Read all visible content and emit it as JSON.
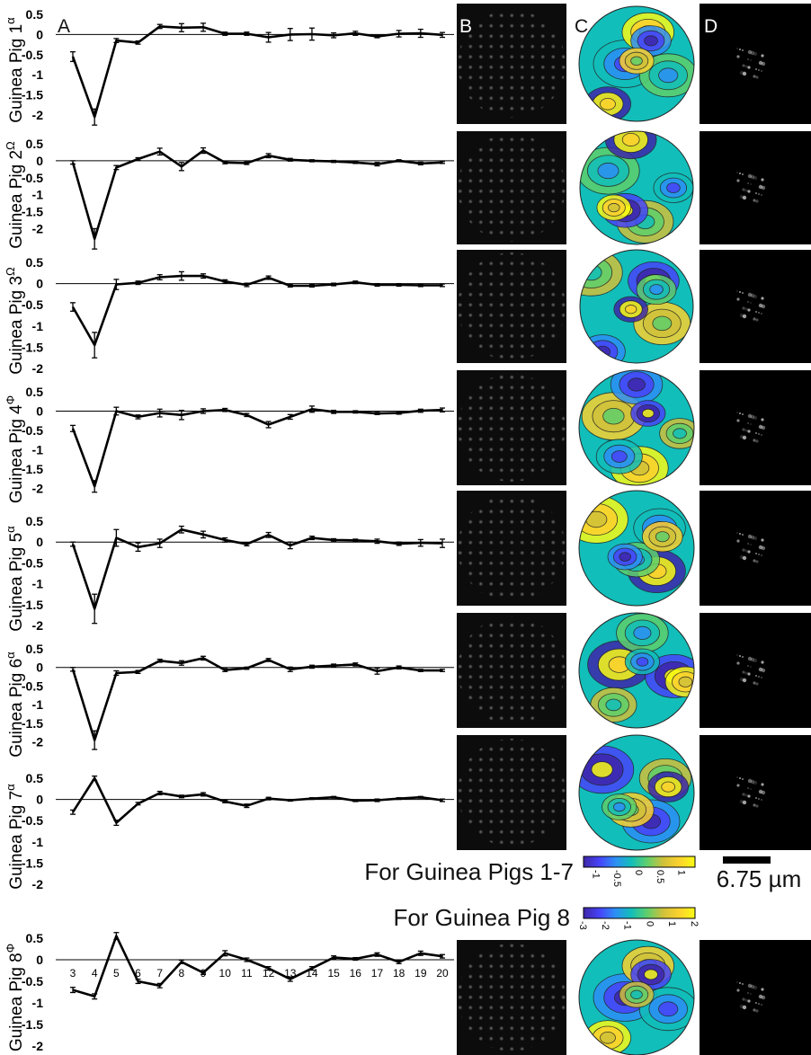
{
  "panel_letters": [
    "A",
    "B",
    "C",
    "D"
  ],
  "captions": {
    "pigs_1_7": "For Guinea Pigs 1-7",
    "pig_8": "For Guinea Pig 8"
  },
  "scale_bar_label": "6.75 µm",
  "colorbars": [
    {
      "ticks": [
        "-1",
        "-0.5",
        "0",
        "0.5",
        "1"
      ],
      "range": [
        -1.3,
        1.3
      ]
    },
    {
      "ticks": [
        "-3",
        "-2",
        "-1",
        "0",
        "1",
        "2"
      ],
      "range": [
        -3,
        2
      ]
    }
  ],
  "colormap": [
    "#3e26a8",
    "#4743f8",
    "#2d8ff5",
    "#12beb9",
    "#5fcf6c",
    "#d0c13a",
    "#fcd22e",
    "#f9fb15"
  ],
  "chart_data": [
    {
      "type": "line",
      "ylabel": "Guinea Pig 1",
      "ylabel_sup": "α",
      "ylim": [
        -2,
        0.5
      ],
      "yticks": [
        "0.5",
        "0",
        "-0.5",
        "-1",
        "-1.5",
        "-2"
      ],
      "x": [
        3,
        4,
        5,
        6,
        7,
        8,
        9,
        10,
        11,
        12,
        13,
        14,
        15,
        16,
        17,
        18,
        19,
        20
      ],
      "values": [
        -0.55,
        -2.05,
        -0.15,
        -0.2,
        0.2,
        0.17,
        0.18,
        0.02,
        0.02,
        -0.07,
        0,
        0.01,
        -0.02,
        0.03,
        -0.05,
        0.02,
        0.03,
        -0.01
      ],
      "errors": [
        0.12,
        0.2,
        0.05,
        0.04,
        0.05,
        0.1,
        0.1,
        0.04,
        0.04,
        0.12,
        0.15,
        0.15,
        0.06,
        0.05,
        0.03,
        0.08,
        0.1,
        0.06
      ]
    },
    {
      "type": "line",
      "ylabel": "Guinea Pig 2",
      "ylabel_sup": "Ω",
      "ylim": [
        -2.2,
        0.5
      ],
      "yticks": [
        "0.5",
        "0",
        "-0.5",
        "-1",
        "-1.5",
        "-2"
      ],
      "x": [
        3,
        4,
        5,
        6,
        7,
        8,
        9,
        10,
        11,
        12,
        13,
        14,
        15,
        16,
        17,
        18,
        19,
        20
      ],
      "values": [
        -0.05,
        -2.3,
        -0.2,
        0.05,
        0.27,
        -0.17,
        0.3,
        -0.05,
        -0.07,
        0.15,
        0.03,
        0,
        -0.02,
        -0.05,
        -0.1,
        0,
        -0.08,
        -0.05
      ],
      "errors": [
        0.05,
        0.3,
        0.06,
        0.04,
        0.1,
        0.12,
        0.08,
        0.04,
        0.04,
        0.06,
        0.04,
        0.03,
        0.03,
        0.03,
        0.05,
        0.03,
        0.04,
        0.03
      ]
    },
    {
      "type": "line",
      "ylabel": "Guinea Pig 3",
      "ylabel_sup": "Ω",
      "ylim": [
        -2,
        0.5
      ],
      "yticks": [
        "0.5",
        "0",
        "-0.5",
        "-1",
        "-1.5",
        "-2"
      ],
      "x": [
        3,
        4,
        5,
        6,
        7,
        8,
        9,
        10,
        11,
        12,
        13,
        14,
        15,
        16,
        17,
        18,
        19,
        20
      ],
      "values": [
        -0.55,
        -1.45,
        -0.02,
        0.02,
        0.15,
        0.18,
        0.18,
        0.05,
        -0.03,
        0.14,
        -0.05,
        -0.05,
        -0.02,
        0.03,
        -0.03,
        -0.03,
        -0.04,
        -0.04
      ],
      "errors": [
        0.1,
        0.3,
        0.12,
        0.04,
        0.06,
        0.1,
        0.05,
        0.04,
        0.04,
        0.04,
        0.03,
        0.03,
        0.03,
        0.03,
        0.03,
        0.03,
        0.03,
        0.03
      ]
    },
    {
      "type": "line",
      "ylabel": "Guinea Pig 4",
      "ylabel_sup": "Φ",
      "ylim": [
        -2.2,
        0.5
      ],
      "yticks": [
        "0.5",
        "0",
        "-0.5",
        "-1",
        "-1.5",
        "-2"
      ],
      "x": [
        3,
        4,
        5,
        6,
        7,
        8,
        9,
        10,
        11,
        12,
        13,
        14,
        15,
        16,
        17,
        18,
        19,
        20
      ],
      "values": [
        -0.45,
        -1.95,
        0,
        -0.15,
        -0.05,
        -0.1,
        0,
        0.03,
        -0.1,
        -0.35,
        -0.15,
        0.05,
        -0.02,
        -0.02,
        -0.06,
        -0.05,
        0.01,
        0.03
      ],
      "errors": [
        0.08,
        0.15,
        0.1,
        0.05,
        0.1,
        0.12,
        0.06,
        0.04,
        0.04,
        0.08,
        0.06,
        0.08,
        0.04,
        0.03,
        0.03,
        0.03,
        0.04,
        0.05
      ]
    },
    {
      "type": "line",
      "ylabel": "Guinea Pig 5",
      "ylabel_sup": "α",
      "ylim": [
        -2,
        0.5
      ],
      "yticks": [
        "0.5",
        "0",
        "-0.5",
        "-1",
        "-1.5",
        "-2"
      ],
      "x": [
        3,
        4,
        5,
        6,
        7,
        8,
        9,
        10,
        11,
        12,
        13,
        14,
        15,
        16,
        17,
        18,
        19,
        20
      ],
      "values": [
        -0.05,
        -1.6,
        0.1,
        -0.12,
        -0.03,
        0.3,
        0.18,
        0.05,
        -0.05,
        0.17,
        -0.08,
        0.1,
        0.05,
        0.04,
        0.02,
        -0.04,
        -0.02,
        -0.03
      ],
      "errors": [
        0.05,
        0.35,
        0.2,
        0.1,
        0.1,
        0.08,
        0.08,
        0.05,
        0.04,
        0.06,
        0.08,
        0.04,
        0.03,
        0.03,
        0.05,
        0.04,
        0.08,
        0.1
      ]
    },
    {
      "type": "line",
      "ylabel": "Guinea Pig 6",
      "ylabel_sup": "α",
      "ylim": [
        -2.2,
        0.5
      ],
      "yticks": [
        "0.5",
        "0",
        "-0.5",
        "-1",
        "-1.5",
        "-2"
      ],
      "x": [
        3,
        4,
        5,
        6,
        7,
        8,
        9,
        10,
        11,
        12,
        13,
        14,
        15,
        16,
        17,
        18,
        19,
        20
      ],
      "values": [
        -0.05,
        -1.95,
        -0.15,
        -0.12,
        0.18,
        0.12,
        0.25,
        -0.07,
        -0.02,
        0.2,
        -0.05,
        0.02,
        0.05,
        0.08,
        -0.1,
        0,
        -0.08,
        -0.08
      ],
      "errors": [
        0.05,
        0.25,
        0.06,
        0.04,
        0.04,
        0.06,
        0.05,
        0.04,
        0.03,
        0.04,
        0.06,
        0.04,
        0.04,
        0.04,
        0.08,
        0.04,
        0.03,
        0.03
      ]
    },
    {
      "type": "line",
      "ylabel": "Guinea Pig 7",
      "ylabel_sup": "α",
      "ylim": [
        -2,
        0.5
      ],
      "yticks": [
        "0.5",
        "0",
        "-0.5",
        "-1",
        "-1.5",
        "-2"
      ],
      "x": [
        3,
        4,
        5,
        6,
        7,
        8,
        9,
        10,
        11,
        12,
        13,
        14,
        15,
        16,
        17,
        18,
        19,
        20
      ],
      "values": [
        -0.3,
        0.5,
        -0.55,
        -0.1,
        0.15,
        0.07,
        0.12,
        -0.05,
        -0.15,
        0.02,
        -0.02,
        0.02,
        0.05,
        -0.03,
        -0.02,
        0.02,
        0.05,
        -0.02
      ],
      "errors": [
        0.05,
        0.05,
        0.06,
        0.03,
        0.04,
        0.03,
        0.04,
        0.03,
        0.04,
        0.03,
        0.02,
        0.02,
        0.02,
        0.02,
        0.03,
        0.02,
        0.02,
        0.03
      ]
    },
    {
      "type": "line",
      "ylabel": "Guinea Pig 8",
      "ylabel_sup": "Φ",
      "ylim": [
        -2,
        0.5
      ],
      "yticks": [
        "0.5",
        "0",
        "-0.5",
        "-1",
        "-1.5",
        "-2"
      ],
      "xticks": [
        "3",
        "4",
        "5",
        "6",
        "7",
        "8",
        "9",
        "10",
        "11",
        "12",
        "13",
        "14",
        "15",
        "16",
        "17",
        "18",
        "19",
        "20"
      ],
      "x": [
        3,
        4,
        5,
        6,
        7,
        8,
        9,
        10,
        11,
        12,
        13,
        14,
        15,
        16,
        17,
        18,
        19,
        20
      ],
      "values": [
        -0.7,
        -0.85,
        0.55,
        -0.5,
        -0.6,
        -0.05,
        -0.3,
        0.15,
        0,
        -0.2,
        -0.45,
        -0.2,
        0.05,
        0.02,
        0.12,
        -0.05,
        0.15,
        0.08
      ],
      "errors": [
        0.06,
        0.06,
        0.08,
        0.05,
        0.05,
        0.04,
        0.04,
        0.06,
        0.04,
        0.04,
        0.05,
        0.04,
        0.04,
        0.03,
        0.04,
        0.04,
        0.05,
        0.04
      ]
    }
  ]
}
